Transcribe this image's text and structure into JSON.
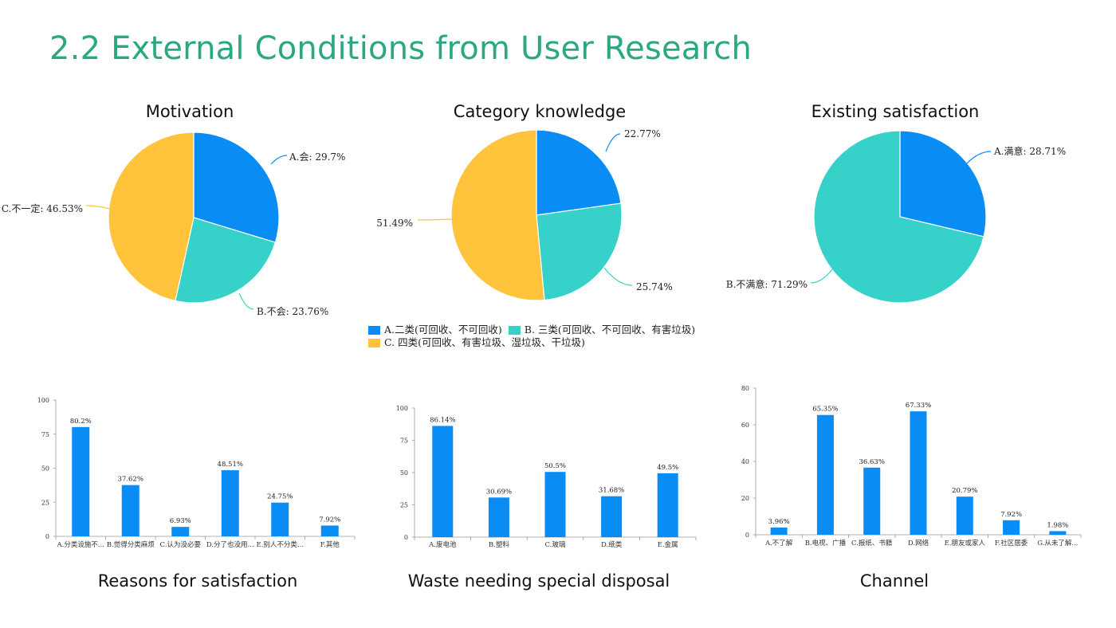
{
  "page": {
    "title": "2.2 External Conditions from User Research"
  },
  "colors": {
    "blue": "#0a8cf5",
    "teal": "#36d1c8",
    "yellow": "#ffc43c",
    "title_green": "#2aa882"
  },
  "legend": {
    "items": [
      {
        "label": "A.二类(可回收、不可回收)",
        "color": "#0a8cf5"
      },
      {
        "label": "B. 三类(可回收、不可回收、有害垃圾)",
        "color": "#36d1c8"
      },
      {
        "label": "C. 四类(可回收、有害垃圾、湿垃圾、干垃圾)",
        "color": "#ffc43c"
      }
    ]
  },
  "chart_data": [
    {
      "type": "pie",
      "title": "Motivation",
      "slices": [
        {
          "label": "A.会: 29.7%",
          "value": 29.7,
          "color": "#0a8cf5"
        },
        {
          "label": "B.不会: 23.76%",
          "value": 23.76,
          "color": "#36d1c8"
        },
        {
          "label": "C.不一定: 46.53%",
          "value": 46.53,
          "color": "#ffc43c"
        }
      ]
    },
    {
      "type": "pie",
      "title": "Category knowledge",
      "slices": [
        {
          "label": "22.77%",
          "value": 22.77,
          "color": "#0a8cf5"
        },
        {
          "label": "25.74%",
          "value": 25.74,
          "color": "#36d1c8"
        },
        {
          "label": "51.49%",
          "value": 51.49,
          "color": "#ffc43c"
        }
      ]
    },
    {
      "type": "pie",
      "title": "Existing satisfaction",
      "slices": [
        {
          "label": "A.满意: 28.71%",
          "value": 28.71,
          "color": "#0a8cf5"
        },
        {
          "label": "B.不满意: 71.29%",
          "value": 71.29,
          "color": "#36d1c8"
        }
      ]
    },
    {
      "type": "bar",
      "title": "Reasons for satisfaction",
      "categories": [
        "A.分类设施不...",
        "B.觉得分类麻烦",
        "C.认为没必要",
        "D.分了也没用...",
        "E.别人不分类...",
        "F.其他"
      ],
      "values": [
        80.2,
        37.62,
        6.93,
        48.51,
        24.75,
        7.92
      ],
      "labels": [
        "80.2%",
        "37.62%",
        "6.93%",
        "48.51%",
        "24.75%",
        "7.92%"
      ],
      "yticks": [
        0,
        25,
        50,
        75,
        100
      ],
      "ylim": [
        0,
        100
      ],
      "color": "#0a8cf5"
    },
    {
      "type": "bar",
      "title": "Waste needing special disposal",
      "categories": [
        "A.废电池",
        "B.塑料",
        "C.玻璃",
        "D.纸类",
        "E.金属"
      ],
      "values": [
        86.14,
        30.69,
        50.5,
        31.68,
        49.5
      ],
      "labels": [
        "86.14%",
        "30.69%",
        "50.5%",
        "31.68%",
        "49.5%"
      ],
      "yticks": [
        0,
        25,
        50,
        75,
        100
      ],
      "ylim": [
        0,
        100
      ],
      "color": "#0a8cf5"
    },
    {
      "type": "bar",
      "title": "Channel",
      "categories": [
        "A.不了解",
        "B.电视、广播",
        "C.报纸、书籍",
        "D.网络",
        "E.朋友或家人",
        "F.社区居委",
        "G.从未了解..."
      ],
      "values": [
        3.96,
        65.35,
        36.63,
        67.33,
        20.79,
        7.92,
        1.98
      ],
      "labels": [
        "3.96%",
        "65.35%",
        "36.63%",
        "67.33%",
        "20.79%",
        "7.92%",
        "1.98%"
      ],
      "yticks": [
        0,
        20,
        40,
        60,
        80
      ],
      "ylim": [
        0,
        80
      ],
      "color": "#0a8cf5"
    }
  ]
}
